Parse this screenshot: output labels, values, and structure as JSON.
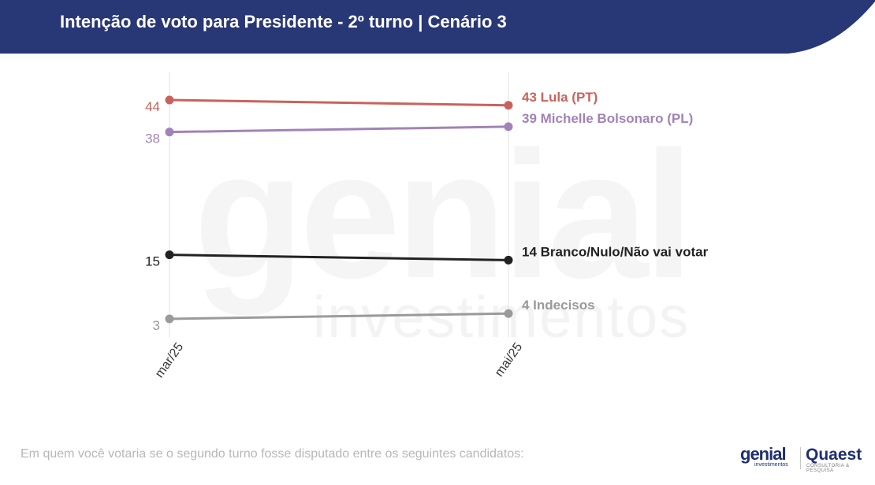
{
  "header": {
    "title": "Intenção de voto para Presidente - 2º turno | Cenário 3",
    "background_color": "#283775"
  },
  "footnote": "Em quem você votaria se o segundo turno fosse disputado entre os seguintes candidatos:",
  "logos": {
    "genial_name": "genial",
    "genial_sub": "investimentos",
    "quaest_name": "Quaest",
    "quaest_sub": "CONSULTORIA & PESQUISA"
  },
  "watermark": {
    "big": "genial",
    "small": "investimentos"
  },
  "chart_data": {
    "type": "line",
    "title": "",
    "xlabel": "",
    "ylabel": "",
    "categories": [
      "mar/25",
      "mai/25"
    ],
    "ylim": [
      3,
      44
    ],
    "grid": "vertical lines at each category",
    "legend": "end-of-line labels on the right",
    "series": [
      {
        "name": "Lula (PT)",
        "values": [
          44,
          43
        ],
        "color": "#c8635c",
        "start_label": "44",
        "end_label": "43 Lula (PT)"
      },
      {
        "name": "Michelle Bolsonaro (PL)",
        "values": [
          38,
          39
        ],
        "color": "#a283b8",
        "start_label": "38",
        "end_label": "39 Michelle Bolsonaro (PL)"
      },
      {
        "name": "Branco/Nulo/Não vai votar",
        "values": [
          15,
          14
        ],
        "color": "#222222",
        "start_label": "15",
        "end_label": "14 Branco/Nulo/Não vai votar"
      },
      {
        "name": "Indecisos",
        "values": [
          3,
          4
        ],
        "color": "#9a9a9a",
        "start_label": "3",
        "end_label": "4 Indecisos"
      }
    ]
  }
}
